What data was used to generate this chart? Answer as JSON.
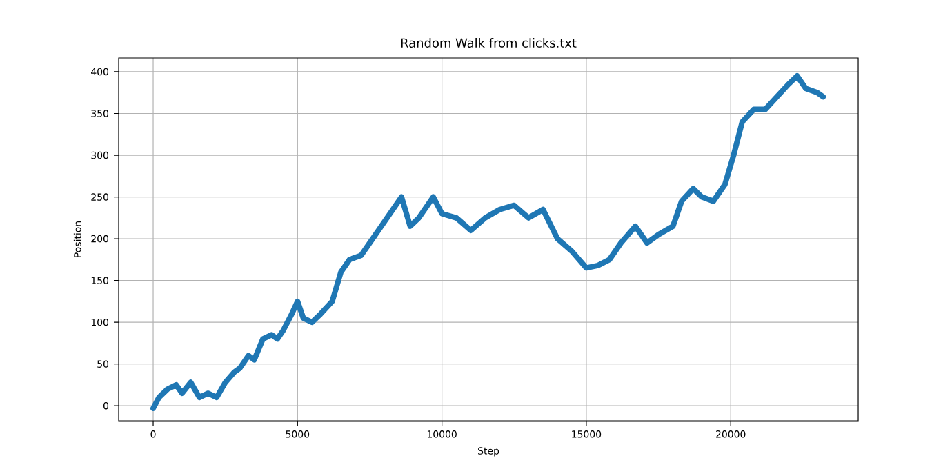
{
  "chart_data": {
    "type": "line",
    "title": "Random Walk from clicks.txt",
    "xlabel": "Step",
    "ylabel": "Position",
    "x": [
      0,
      200,
      500,
      800,
      1000,
      1300,
      1600,
      1900,
      2200,
      2500,
      2800,
      3000,
      3300,
      3500,
      3800,
      4100,
      4300,
      4500,
      4800,
      5000,
      5200,
      5500,
      5800,
      6200,
      6500,
      6800,
      7200,
      7500,
      7800,
      8200,
      8600,
      8900,
      9200,
      9700,
      10000,
      10500,
      11000,
      11500,
      12000,
      12500,
      13000,
      13500,
      14000,
      14500,
      15000,
      15400,
      15800,
      16200,
      16700,
      17100,
      17500,
      18000,
      18300,
      18700,
      19000,
      19400,
      19800,
      20100,
      20400,
      20800,
      21200,
      21600,
      22000,
      22300,
      22600,
      23000,
      23200
    ],
    "series": [
      {
        "color": "#1f77b4",
        "values": [
          -3,
          10,
          20,
          25,
          15,
          28,
          10,
          15,
          10,
          28,
          40,
          45,
          60,
          55,
          80,
          85,
          80,
          90,
          110,
          125,
          105,
          100,
          110,
          125,
          160,
          175,
          180,
          195,
          210,
          230,
          250,
          215,
          225,
          250,
          230,
          225,
          210,
          225,
          235,
          240,
          225,
          235,
          200,
          185,
          165,
          168,
          175,
          195,
          215,
          195,
          205,
          215,
          245,
          260,
          250,
          245,
          265,
          300,
          340,
          355,
          355,
          370,
          385,
          395,
          380,
          375,
          370
        ]
      }
    ],
    "xlim": [
      -1195,
      24415
    ],
    "ylim": [
      -18,
      416.5
    ],
    "xticks": [
      0,
      5000,
      10000,
      15000,
      20000
    ],
    "yticks": [
      0,
      50,
      100,
      150,
      200,
      250,
      300,
      350,
      400
    ],
    "grid": true,
    "line_style": "solid"
  }
}
